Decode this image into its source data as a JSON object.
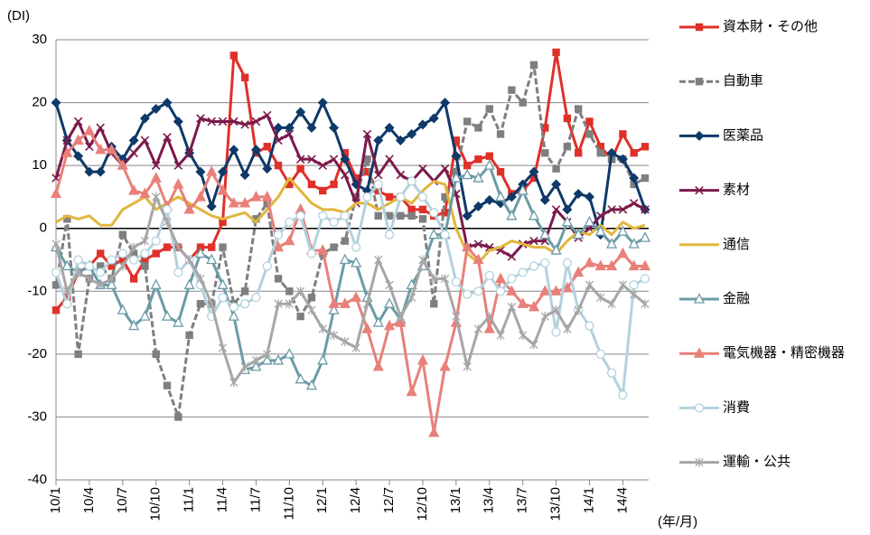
{
  "chart_data": {
    "type": "line",
    "y_label": "(DI)",
    "x_label": "(年/月)",
    "ylim": [
      -40,
      30
    ],
    "yticks": [
      -40,
      -30,
      -20,
      -10,
      0,
      10,
      20,
      30
    ],
    "grid": true,
    "legend": "right",
    "categories": [
      "10/1",
      null,
      null,
      "10/4",
      null,
      null,
      "10/7",
      null,
      null,
      "10/10",
      null,
      null,
      "11/1",
      null,
      null,
      "11/4",
      null,
      null,
      "11/7",
      null,
      null,
      "11/10",
      null,
      null,
      "12/1",
      null,
      null,
      "12/4",
      null,
      null,
      "12/7",
      null,
      null,
      "12/10",
      null,
      null,
      "13/1",
      null,
      null,
      "13/4",
      null,
      null,
      "13/7",
      null,
      null,
      "13/10",
      null,
      null,
      "14/1",
      null,
      null,
      "14/4",
      null,
      null
    ],
    "series": [
      {
        "name": "資本財・その他",
        "color": "#e0302a",
        "marker": "square",
        "values": [
          -13,
          -11,
          -7,
          -6,
          -4,
          -6,
          -5,
          -8,
          -5,
          -4,
          -3,
          -3,
          -5,
          -3,
          -3,
          1,
          27.5,
          24,
          12,
          13,
          10,
          7,
          9.5,
          7,
          6,
          7,
          12,
          8,
          9,
          6,
          5,
          5,
          3,
          3,
          2,
          2.5,
          14,
          10,
          11,
          11.5,
          9,
          5.5,
          6,
          8,
          16,
          28,
          17.5,
          12,
          17,
          13,
          11,
          15,
          12,
          13
        ]
      },
      {
        "name": "自動車",
        "color": "#7f7f7f",
        "marker": "square",
        "dashed": true,
        "values": [
          -9,
          1.5,
          -20,
          -8,
          -6,
          -8,
          -1,
          -4,
          -6,
          -20,
          -25,
          -30,
          -17,
          -12,
          -12,
          -3,
          -12,
          -10,
          1.5,
          4,
          -8,
          -10,
          -14,
          -11,
          -4,
          -3,
          -2,
          5,
          11,
          2,
          2,
          2,
          2,
          1.5,
          -12,
          5,
          9,
          17,
          16,
          19,
          15,
          22,
          20,
          26,
          12,
          9.5,
          13,
          19,
          15,
          12,
          11,
          11,
          7,
          8
        ]
      },
      {
        "name": "医薬品",
        "color": "#0e3968",
        "marker": "diamond",
        "values": [
          20,
          14,
          11.5,
          9,
          9,
          13,
          11,
          14,
          17.5,
          19,
          20,
          17,
          12,
          9,
          3.5,
          9,
          12.5,
          8.5,
          12.5,
          9.5,
          16,
          16,
          18.5,
          16,
          20,
          16,
          11,
          7,
          6,
          14,
          16,
          14,
          15,
          16.5,
          17.5,
          20,
          11.5,
          2,
          3.5,
          4.5,
          4,
          5,
          7,
          9,
          4.5,
          7,
          3,
          5.5,
          5,
          -1,
          12,
          11,
          8,
          3
        ]
      },
      {
        "name": "素材",
        "color": "#7b1a4b",
        "marker": "x",
        "values": [
          8,
          14,
          17,
          13,
          16,
          12,
          10,
          12,
          14,
          10,
          14.5,
          10,
          12,
          17.5,
          17,
          17,
          17,
          16.5,
          17,
          18,
          14,
          15,
          11,
          11,
          10,
          11,
          8.5,
          4,
          15,
          8.5,
          11,
          8.5,
          7.5,
          9.5,
          7.5,
          9.5,
          5.5,
          -3,
          -2.5,
          -3,
          -3.5,
          -4.5,
          -2.5,
          -2,
          -2,
          3,
          1,
          -1.5,
          0,
          2,
          3,
          3,
          4,
          3
        ]
      },
      {
        "name": "通信",
        "color": "#e2b63c",
        "marker": "none",
        "values": [
          1,
          2,
          1.5,
          2,
          0.5,
          0.5,
          3,
          4,
          5,
          3,
          4,
          5,
          4,
          3,
          2,
          1.5,
          2,
          2.5,
          1,
          3,
          5,
          8,
          6,
          4,
          3,
          3,
          2.5,
          4,
          4,
          3,
          4,
          5,
          4,
          6,
          7.5,
          7,
          0,
          -4,
          -5.5,
          -3.5,
          -3,
          -2,
          -2.5,
          -3,
          -3,
          -4,
          -2,
          -0.5,
          -1,
          0.5,
          -1,
          1,
          0,
          0.5
        ]
      },
      {
        "name": "金融",
        "color": "#6b9ba7",
        "marker": "triangle-open",
        "values": [
          -3,
          -6,
          -7,
          -6,
          -9,
          -9,
          -13,
          -15.5,
          -14,
          -9,
          -14,
          -15,
          -9,
          -4,
          -5,
          -9,
          -14,
          -22.5,
          -22,
          -21,
          -21,
          -20,
          -24,
          -25,
          -21,
          -13,
          -5,
          -5.5,
          -11,
          -15,
          -12,
          -14.5,
          -9,
          -6,
          -1,
          -1,
          8,
          8.5,
          8,
          10,
          5,
          2,
          6,
          2,
          -1,
          -3.5,
          1,
          -1,
          1,
          -0.5,
          -2.5,
          -0.5,
          -2.5,
          -1.5
        ]
      },
      {
        "name": "電気機器・精密機器",
        "color": "#e8807a",
        "marker": "triangle",
        "values": [
          5.5,
          12,
          14,
          15.5,
          12.5,
          12.5,
          10,
          6,
          5.5,
          8,
          3.5,
          7,
          3,
          5,
          9,
          6,
          4,
          4,
          5,
          5,
          -3,
          -2,
          3,
          -3.5,
          -3.5,
          -12,
          -12,
          -11,
          -16,
          -22,
          -15.5,
          -15,
          -26,
          -21,
          -32.5,
          -22,
          -15,
          -3,
          -5,
          -16,
          -8,
          -10,
          -12,
          -12.5,
          -10,
          -10,
          -9.5,
          -7,
          -5.5,
          -6,
          -6,
          -4,
          -6,
          -6
        ]
      },
      {
        "name": "消費",
        "color": "#b3d2dd",
        "marker": "circle",
        "values": [
          -7,
          -12,
          -5,
          -6,
          -7,
          -5,
          -4,
          -5,
          -4,
          -2,
          3,
          -7,
          -5,
          -9,
          -14,
          -11,
          -12.5,
          -12,
          -11,
          -6,
          -1,
          1,
          2,
          -4,
          2,
          1,
          2,
          -3,
          5,
          7,
          -1,
          5,
          7.5,
          5,
          2.5,
          -1,
          -8.5,
          -10.5,
          -10,
          -7.5,
          -10,
          -8,
          -7,
          -6,
          -5.5,
          -16.5,
          -5.5,
          -13,
          -15.5,
          -20,
          -23,
          -26.5,
          -9,
          -8
        ]
      },
      {
        "name": "運輸・公共",
        "color": "#a6a6a6",
        "marker": "star",
        "values": [
          -2.5,
          -10,
          -7,
          -8,
          -9,
          -8,
          -6,
          -3,
          -2,
          5,
          1,
          -3,
          -5,
          -8,
          -12,
          -19,
          -24.5,
          -22,
          -21,
          -20,
          -12,
          -12,
          -10,
          -13,
          -16,
          -17,
          -18,
          -19,
          -12,
          -5,
          -9,
          -14,
          -11,
          -5,
          -8,
          -8,
          -14,
          -22,
          -16,
          -14,
          -17,
          -12.5,
          -17,
          -18.5,
          -14,
          -13,
          -16,
          -13,
          -9,
          -11,
          -12,
          -9,
          -10.5,
          -12
        ]
      }
    ]
  }
}
